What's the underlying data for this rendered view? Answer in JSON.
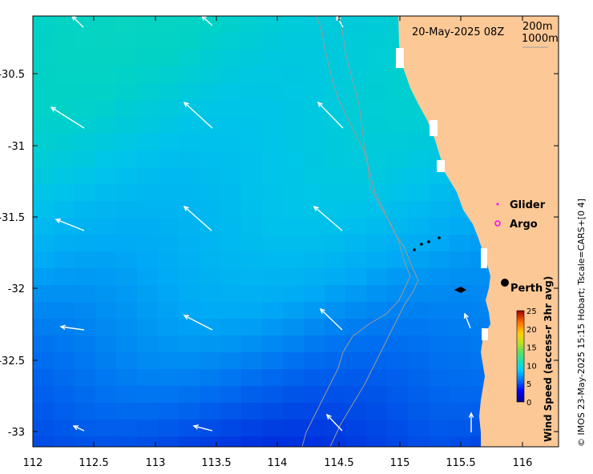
{
  "map": {
    "timestamp": "20-May-2025 08Z",
    "depth_contours": [
      "200m",
      "1000m"
    ],
    "x_ticks": [
      "112",
      "112.5",
      "113",
      "113.5",
      "114",
      "114.5",
      "115",
      "115.5",
      "116"
    ],
    "y_ticks": [
      "-30.5",
      "-31",
      "-31.5",
      "-32",
      "-32.5",
      "-33"
    ],
    "legend": {
      "glider": "Glider",
      "argo": "Argo"
    },
    "place_label": "Perth",
    "colorbar": {
      "label": "Wind Speed (access-r 3hr avg)",
      "ticks": [
        "0",
        "5",
        "10",
        "15",
        "20",
        "25"
      ]
    },
    "credit": "© IMOS 23-May-2025 15:15 Hobart; Tscale=CARS+[0 4]"
  },
  "colors": {
    "land": "#fcc896",
    "contour": "#9a9a9a",
    "vector": "#ffffff",
    "glider": "#ff00ff",
    "argo": "#ff00ff"
  }
}
